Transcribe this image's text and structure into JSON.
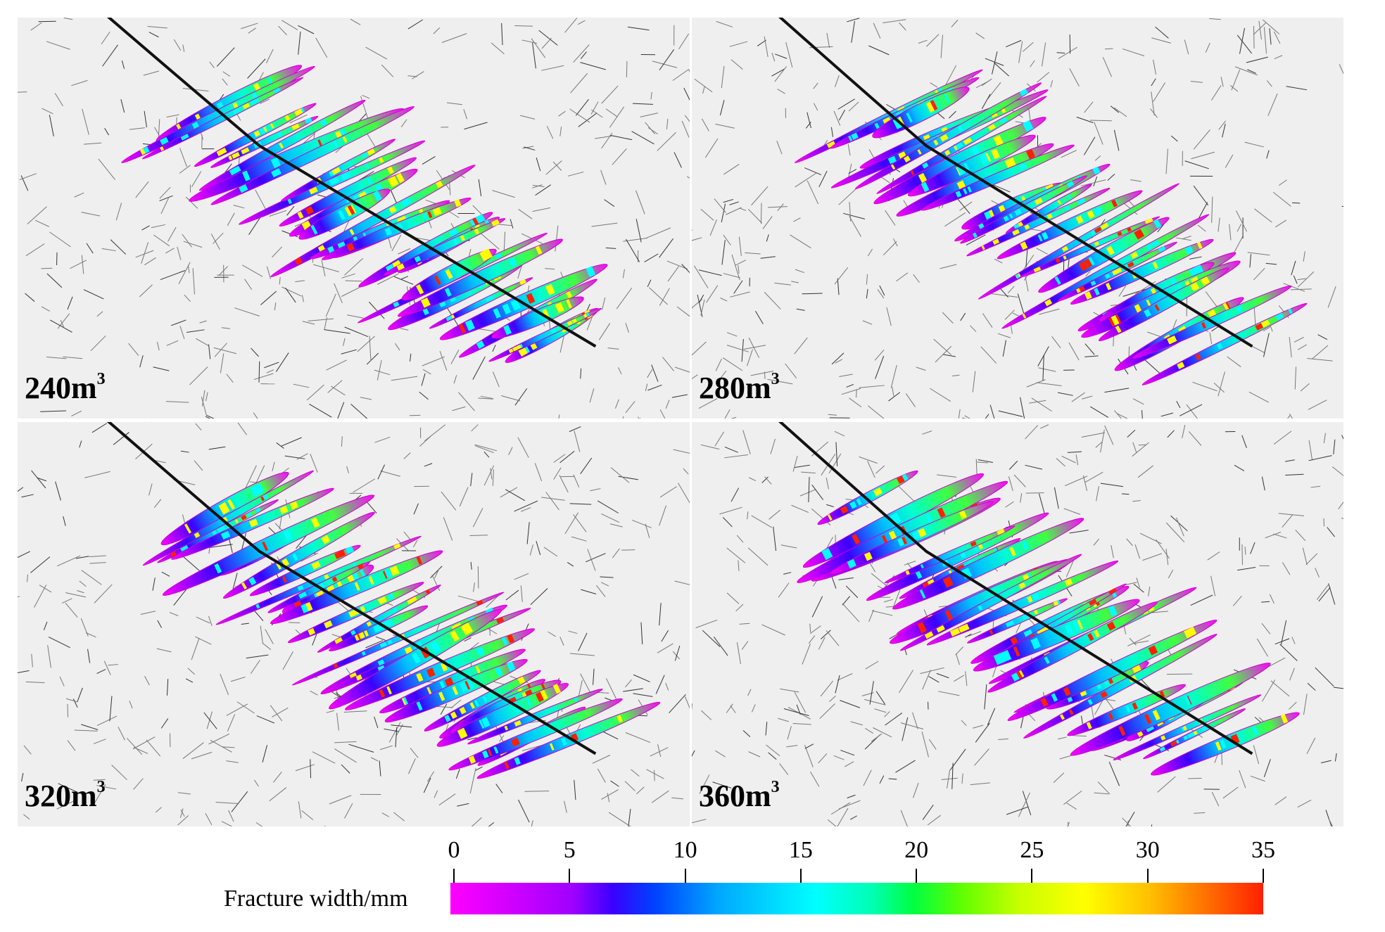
{
  "panels": [
    {
      "label": "240m",
      "sup": "3",
      "seed": 11,
      "red": 0.05
    },
    {
      "label": "280m",
      "sup": "3",
      "seed": 23,
      "red": 0.1
    },
    {
      "label": "320m",
      "sup": "3",
      "seed": 37,
      "red": 0.18
    },
    {
      "label": "360m",
      "sup": "3",
      "seed": 53,
      "red": 0.3
    }
  ],
  "colorbar": {
    "title": "Fracture width/mm",
    "ticks": [
      "0",
      "5",
      "10",
      "15",
      "20",
      "25",
      "30",
      "35"
    ],
    "min": 0,
    "max": 35,
    "colors": [
      "#ff00ff",
      "#3a00ff",
      "#00a8ff",
      "#00ffff",
      "#00ff40",
      "#c8ff00",
      "#ffff00",
      "#ff2000"
    ]
  }
}
